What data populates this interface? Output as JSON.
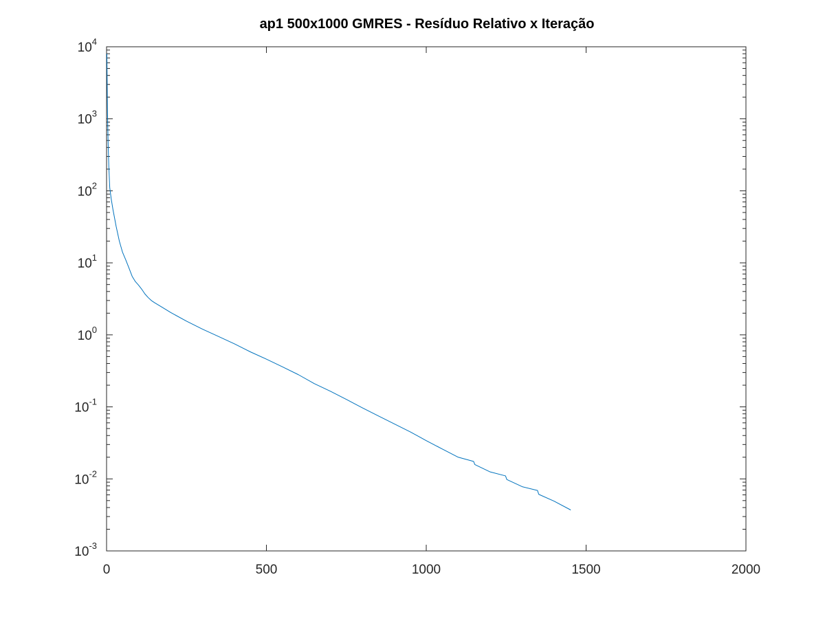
{
  "chart_data": {
    "type": "line",
    "title": "ap1 500x1000 GMRES - Resíduo Relativo x Iteração",
    "xlabel": "",
    "ylabel": "",
    "x_scale": "linear",
    "y_scale": "log",
    "xlim": [
      0,
      2000
    ],
    "ylim": [
      0.001,
      10000
    ],
    "x_ticks": [
      0,
      500,
      1000,
      1500,
      2000
    ],
    "x_tick_labels": [
      "0",
      "500",
      "1000",
      "1500",
      "2000"
    ],
    "y_ticks": [
      0.001,
      0.01,
      0.1,
      1,
      10,
      100,
      1000,
      10000
    ],
    "y_tick_labels": [
      {
        "base": "10",
        "exp": "-3"
      },
      {
        "base": "10",
        "exp": "-2"
      },
      {
        "base": "10",
        "exp": "-1"
      },
      {
        "base": "10",
        "exp": "0"
      },
      {
        "base": "10",
        "exp": "1"
      },
      {
        "base": "10",
        "exp": "2"
      },
      {
        "base": "10",
        "exp": "3"
      },
      {
        "base": "10",
        "exp": "4"
      }
    ],
    "grid": false,
    "legend": "none",
    "series": [
      {
        "color": "#0072bd",
        "x": [
          1,
          2,
          3,
          5,
          7,
          10,
          15,
          20,
          30,
          40,
          50,
          60,
          70,
          80,
          90,
          100,
          110,
          120,
          130,
          140,
          150,
          175,
          200,
          250,
          300,
          350,
          400,
          450,
          500,
          550,
          600,
          650,
          700,
          750,
          800,
          850,
          900,
          950,
          1000,
          1050,
          1100,
          1148,
          1152,
          1200,
          1248,
          1252,
          1300,
          1348,
          1352,
          1400,
          1452
        ],
        "y": [
          8000,
          3000,
          1200,
          450,
          220,
          110,
          75,
          55,
          32,
          20,
          14,
          11,
          8.5,
          6.5,
          5.5,
          4.9,
          4.3,
          3.7,
          3.3,
          3.0,
          2.8,
          2.4,
          2.05,
          1.55,
          1.2,
          0.95,
          0.75,
          0.58,
          0.46,
          0.36,
          0.28,
          0.21,
          0.165,
          0.127,
          0.097,
          0.075,
          0.058,
          0.045,
          0.034,
          0.026,
          0.02,
          0.0175,
          0.0158,
          0.0125,
          0.011,
          0.0098,
          0.0078,
          0.0069,
          0.0061,
          0.0049,
          0.0037
        ]
      }
    ]
  }
}
